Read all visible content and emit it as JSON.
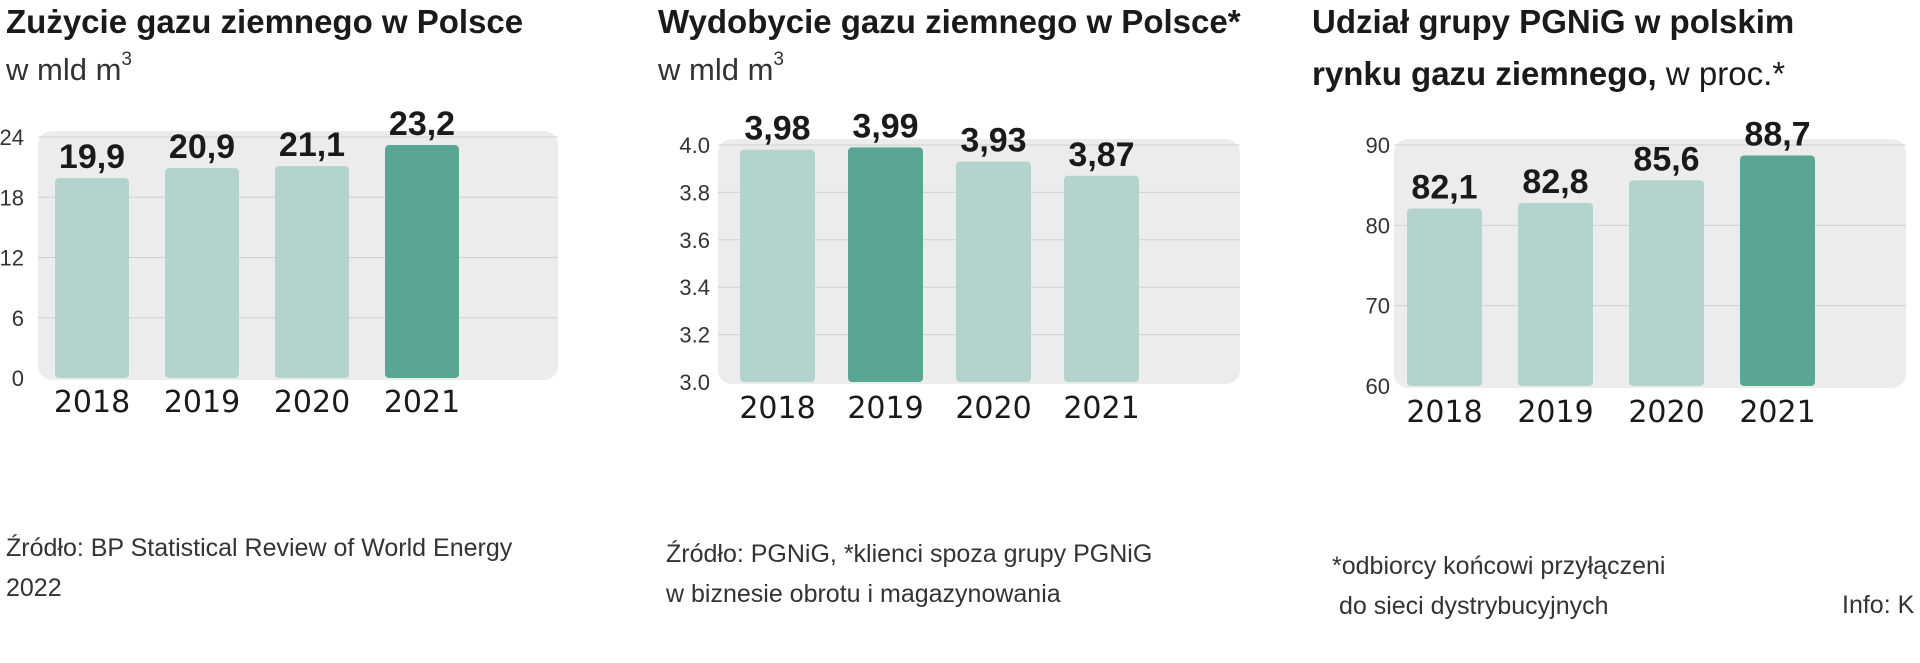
{
  "chart_data": [
    {
      "type": "bar",
      "title": "Zużycie gazu ziemnego w Polsce",
      "subtitle": "w mld m",
      "subtitle_sup": "3",
      "categories": [
        "2018",
        "2019",
        "2020",
        "2021"
      ],
      "values": [
        19.9,
        20.9,
        21.1,
        23.2
      ],
      "value_labels": [
        "19,9",
        "20,9",
        "21,1",
        "23,2"
      ],
      "ylim": [
        0,
        24
      ],
      "yticks": [
        0,
        6,
        12,
        18,
        24
      ],
      "ytick_labels": [
        "0",
        "6",
        "12",
        "18",
        "24"
      ],
      "highlight_index": 3,
      "source_lines": [
        "Źródło: BP Statistical Review of World Energy",
        "2022"
      ]
    },
    {
      "type": "bar",
      "title": "Wydobycie gazu ziemnego w Polsce*",
      "subtitle": "w mld m",
      "subtitle_sup": "3",
      "categories": [
        "2018",
        "2019",
        "2020",
        "2021"
      ],
      "values": [
        3.98,
        3.99,
        3.93,
        3.87
      ],
      "value_labels": [
        "3,98",
        "3,99",
        "3,93",
        "3,87"
      ],
      "ylim": [
        3.0,
        4.0
      ],
      "yticks": [
        3.0,
        3.2,
        3.4,
        3.6,
        3.8,
        4.0
      ],
      "ytick_labels": [
        "3.0",
        "3.2",
        "3.4",
        "3.6",
        "3.8",
        "4.0"
      ],
      "highlight_index": 1,
      "source_lines": [
        "Źródło: PGNiG, *klienci spoza grupy PGNiG",
        "w biznesie  obrotu i magazynowania"
      ]
    },
    {
      "type": "bar",
      "title_line1": "Udział grupy PGNiG w polskim",
      "title_line2_bold": "rynku gazu ziemnego,",
      "title_line2_normal": " w proc.*",
      "categories": [
        "2018",
        "2019",
        "2020",
        "2021"
      ],
      "values": [
        82.1,
        82.8,
        85.6,
        88.7
      ],
      "value_labels": [
        "82,1",
        "82,8",
        "85,6",
        "88,7"
      ],
      "ylim": [
        60,
        90
      ],
      "yticks": [
        60,
        70,
        80,
        90
      ],
      "ytick_labels": [
        "60",
        "70",
        "80",
        "90"
      ],
      "highlight_index": 3,
      "source_lines": [
        "*odbiorcy końcowi przyłączeni",
        " do sieci dystrybucyjnych"
      ],
      "info": "Info: K"
    }
  ],
  "colors": {
    "bar": "#b3d4cd",
    "bar_highlight": "#5ba594",
    "background_panel": "#ececec",
    "gridline": "#d0d0d0",
    "text": "#1a1a1a"
  }
}
